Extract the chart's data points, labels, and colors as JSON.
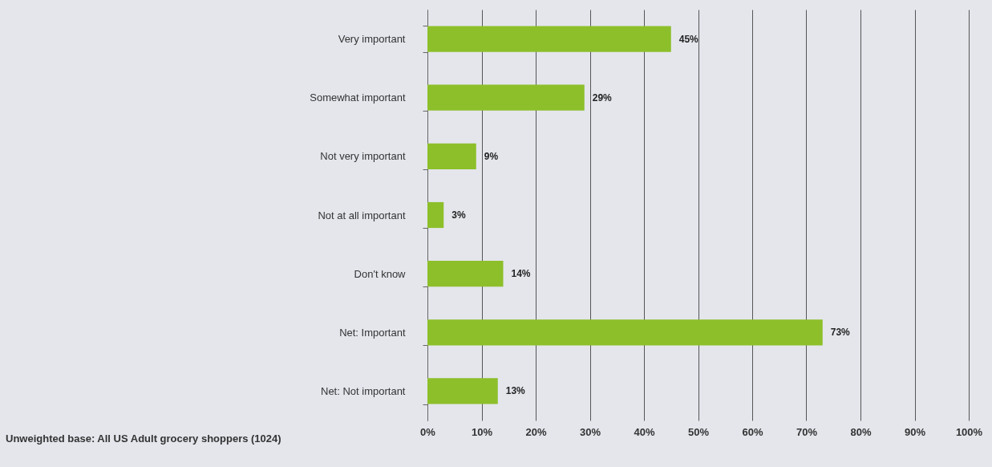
{
  "chart_data": {
    "type": "bar",
    "orientation": "horizontal",
    "categories": [
      "Very important",
      "Somewhat important",
      "Not very important",
      "Not at all important",
      "Don't know",
      "Net: Important",
      "Net: Not important"
    ],
    "values": [
      45,
      29,
      9,
      3,
      14,
      73,
      13
    ],
    "value_labels": [
      "45%",
      "29%",
      "9%",
      "3%",
      "14%",
      "73%",
      "13%"
    ],
    "color": "#8dbf2a",
    "xlim": [
      0,
      100
    ],
    "xticks": [
      {
        "value": 0,
        "label": "0%"
      },
      {
        "value": 10,
        "label": "10%"
      },
      {
        "value": 20,
        "label": "20%"
      },
      {
        "value": 30,
        "label": "30%"
      },
      {
        "value": 40,
        "label": "40%"
      },
      {
        "value": 50,
        "label": "50%"
      },
      {
        "value": 60,
        "label": "60%"
      },
      {
        "value": 70,
        "label": "70%"
      },
      {
        "value": 80,
        "label": "80%"
      },
      {
        "value": 90,
        "label": "90%"
      },
      {
        "value": 100,
        "label": "100%"
      }
    ],
    "grid": "x",
    "annotations": [
      "Unweighted base: All US Adult grocery shoppers (1024)"
    ]
  }
}
